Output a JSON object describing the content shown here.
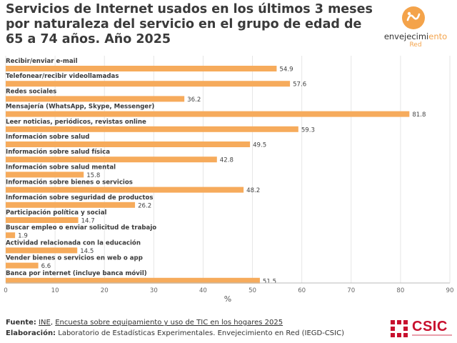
{
  "header": {
    "title": "Servicios de Internet usados en los últimos 3 meses por naturaleza del servicio en el grupo de edad de 65 a 74 años. Año 2025"
  },
  "logo": {
    "name_part1": "envejecimi",
    "name_part2": "ento",
    "name_part3": "Red",
    "accent_color": "#f4a34a"
  },
  "chart_data": {
    "type": "bar",
    "orientation": "horizontal",
    "categories": [
      "Recibir/enviar e-mail",
      "Telefonear/recibir videollamadas",
      "Redes sociales",
      "Mensajería (WhatsApp, Skype, Messenger)",
      "Leer noticias, periódicos, revistas online",
      "Información sobre salud",
      "Información sobre salud física",
      "Información sobre salud mental",
      "Información sobre bienes o servicios",
      "Información sobre seguridad de productos",
      "Participación política y social",
      "Buscar empleo o enviar solicitud de trabajo",
      "Actividad relacionada con la educación",
      "Vender bienes o servicios en web o app",
      "Banca por internet (incluye banca móvil)"
    ],
    "values": [
      54.9,
      57.6,
      36.2,
      81.8,
      59.3,
      49.5,
      42.8,
      15.8,
      48.2,
      26.2,
      14.7,
      1.9,
      14.5,
      6.6,
      51.5
    ],
    "value_labels": [
      "54.9",
      "57.6",
      "36.2",
      "81.8",
      "59.3",
      "49.5",
      "42.8",
      "15.8",
      "48.2",
      "26.2",
      "14.7",
      "1.9",
      "14.5",
      "6.6",
      "51.5"
    ],
    "xlabel": "%",
    "xlim": [
      0,
      90
    ],
    "xticks": [
      "0",
      "10",
      "20",
      "30",
      "40",
      "50",
      "60",
      "70",
      "80",
      "90"
    ],
    "bar_color": "#f6ab5c",
    "grid": true
  },
  "footer": {
    "source_label": "Fuente:",
    "source_org": "INE",
    "source_sep": ", ",
    "source_survey": "Encuesta sobre equipamiento y uso de TIC en los hogares 2025",
    "made_label": "Elaboración:",
    "made_text": "Laboratorio de Estadísticas Experimentales. Envejecimiento en Red (IEGD-CSIC)"
  },
  "csic": {
    "text": "CSIC",
    "color": "#c8102e"
  }
}
